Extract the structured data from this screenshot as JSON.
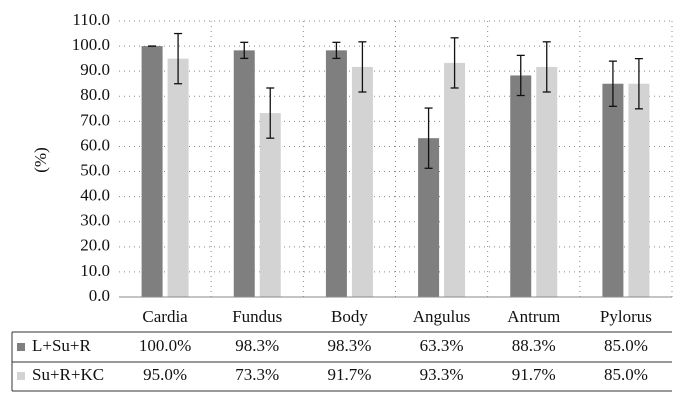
{
  "chart_data": {
    "type": "bar",
    "y_label": "(%)",
    "categories": [
      "Cardia",
      "Fundus",
      "Body",
      "Angulus",
      "Antrum",
      "Pylorus"
    ],
    "series": [
      {
        "name": "L+Su+R",
        "color": "#7f7f7f",
        "values": [
          100.0,
          98.3,
          98.3,
          63.3,
          88.3,
          85.0
        ],
        "errors": [
          0,
          3.2,
          3.2,
          12,
          8,
          9
        ],
        "value_labels": [
          "100.0%",
          "98.3%",
          "98.3%",
          "63.3%",
          "88.3%",
          "85.0%"
        ]
      },
      {
        "name": "Su+R+KC",
        "color": "#d3d3d3",
        "values": [
          95.0,
          73.3,
          91.7,
          93.3,
          91.7,
          85.0
        ],
        "errors": [
          10,
          10,
          10,
          10,
          10,
          10
        ],
        "value_labels": [
          "95.0%",
          "73.3%",
          "91.7%",
          "93.3%",
          "91.7%",
          "85.0%"
        ]
      }
    ],
    "ylim": [
      0,
      110
    ],
    "yticks": [
      {
        "value": 0,
        "label": "0.0"
      },
      {
        "value": 10,
        "label": "10.0"
      },
      {
        "value": 20,
        "label": "20.0"
      },
      {
        "value": 30,
        "label": "30.0"
      },
      {
        "value": 40,
        "label": "40.0"
      },
      {
        "value": 50,
        "label": "50.0"
      },
      {
        "value": 60,
        "label": "60.0"
      },
      {
        "value": 70,
        "label": "70.0"
      },
      {
        "value": 80,
        "label": "80.0"
      },
      {
        "value": 90,
        "label": "90.0"
      },
      {
        "value": 100,
        "label": "100.0"
      },
      {
        "value": 110,
        "label": "110.0"
      }
    ],
    "grid": true
  }
}
